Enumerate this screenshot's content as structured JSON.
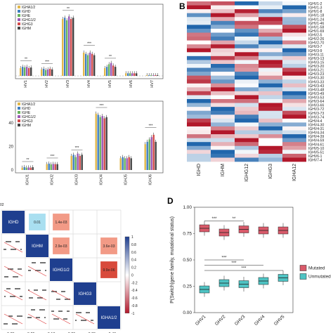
{
  "panel_labels": {
    "b": "B",
    "d": "D"
  },
  "panel_a": {
    "legend": [
      "IGHA1/2",
      "IGHD",
      "IGHE",
      "IGHG1/2",
      "IGHG3",
      "IGHM"
    ],
    "categories": [
      "IGHV1",
      "IGHV2",
      "IGHV3",
      "IGHV4",
      "IGHV5",
      "IGHV6",
      "IGHV7"
    ],
    "colors": [
      "#e2b84a",
      "#3f7fc0",
      "#68b35c",
      "#9b59b6",
      "#d24b4b",
      "#444444"
    ],
    "values": [
      [
        0.06,
        0.07,
        0.065,
        0.07,
        0.06,
        0.065
      ],
      [
        0.05,
        0.055,
        0.045,
        0.05,
        0.055,
        0.05
      ],
      [
        0.44,
        0.45,
        0.43,
        0.46,
        0.44,
        0.45
      ],
      [
        0.18,
        0.17,
        0.16,
        0.18,
        0.17,
        0.16
      ],
      [
        0.06,
        0.07,
        0.09,
        0.1,
        0.08,
        0.07
      ],
      [
        0.02,
        0.02,
        0.02,
        0.02,
        0.02,
        0.02
      ],
      [
        0.005,
        0.005,
        0.005,
        0.005,
        0.005,
        0.005
      ]
    ],
    "sig": [
      "**",
      "***",
      "**",
      "***",
      "**"
    ]
  },
  "panel_c": {
    "legend": [
      "IGHA1/2",
      "IGHD",
      "IGHE",
      "IGHG1/2",
      "IGHG3",
      "IGHM"
    ],
    "yticks": [
      "40",
      "20",
      "0"
    ],
    "categories": [
      "IGHJ1",
      "IGHJ2",
      "IGHJ3",
      "IGHJ4",
      "IGHJ5",
      "IGHJ6"
    ],
    "values": [
      [
        2,
        2.5,
        2,
        2.2,
        2,
        2.4
      ],
      [
        5,
        5.5,
        4.8,
        5.2,
        5,
        5
      ],
      [
        12,
        13,
        11,
        14,
        12,
        13
      ],
      [
        48,
        47,
        45,
        46,
        44,
        45
      ],
      [
        10,
        11,
        10,
        10,
        11,
        10
      ],
      [
        22,
        24,
        26,
        28,
        30,
        24
      ]
    ],
    "sig": [
      "**",
      "***",
      "***",
      "***",
      "***"
    ]
  },
  "panel_b": {
    "rows": [
      "IGHV1-2",
      "IGHV1-3",
      "IGHV1-8",
      "IGHV1-18",
      "IGHV1-24",
      "IGHV1-46",
      "IGHV1-58",
      "IGHV1-69",
      "IGHV2-5",
      "IGHV2-26",
      "IGHV2-70",
      "IGHV3-7",
      "IGHV3-9",
      "IGHV3-11",
      "IGHV3-13",
      "IGHV3-15",
      "IGHV3-20",
      "IGHV3-21",
      "IGHV3-23",
      "IGHV3-30",
      "IGHV3-33",
      "IGHV3-43",
      "IGHV3-48",
      "IGHV3-49",
      "IGHV3-53",
      "IGHV3-64",
      "IGHV3-66",
      "IGHV3-72",
      "IGHV3-73",
      "IGHV3-74",
      "IGHV4-4",
      "IGHV4-30",
      "IGHV4-31",
      "IGHV4-34",
      "IGHV4-39",
      "IGHV4-59",
      "IGHV4-61",
      "IGHV5-10",
      "IGHV5-51",
      "IGHV6-1",
      "IGHV7-4"
    ],
    "cols": [
      "IGHD",
      "IGHM",
      "IGHG12",
      "IGHG3",
      "IGHA12"
    ]
  },
  "panel_e": {
    "diag": [
      "IGHD",
      "IGHM",
      "IGHG1/2",
      "IGHG3",
      "IGHA1/2"
    ],
    "cells": [
      {
        "label": "0.01",
        "color": "#a9dff0"
      },
      {
        "label": "1.4e-03",
        "color": "#f29a86"
      },
      {
        "label": "2.9e-03",
        "color": "#f29a86"
      },
      {
        "label": "3.6e-03",
        "color": "#f29a86"
      },
      {
        "label": "9.9e-06",
        "color": "#d84a3b"
      }
    ],
    "colorbar": [
      "1",
      "0.8",
      "0.6",
      "0.4",
      "0.2",
      "0",
      "-0.2",
      "-0.4",
      "-0.6",
      "-0.8",
      "-1"
    ],
    "xticks": [
      "0.25",
      "0.25",
      "0.10",
      "0.25",
      "0.25",
      "0.40"
    ],
    "top_tick": "02"
  },
  "panel_d": {
    "ylabel": "P(Switch|gene family, mutational status)",
    "yticks": [
      "1.00",
      "0.75",
      "0.50",
      "0.25",
      "0.00"
    ],
    "categories": [
      "GHV1",
      "GHV2",
      "GHV3",
      "GHV4",
      "GHV5"
    ],
    "mutated": [
      0.8,
      0.76,
      0.79,
      0.78,
      0.78
    ],
    "unmutated": [
      0.22,
      0.28,
      0.27,
      0.3,
      0.33
    ],
    "sig_top": [
      "***",
      "**"
    ],
    "sig_bottom": [
      "***",
      "***",
      "***"
    ],
    "legend": [
      "Mutated",
      "Unmutated"
    ],
    "colors": {
      "mutated": "#d95a6a",
      "unmutated": "#4ec3c3"
    }
  }
}
